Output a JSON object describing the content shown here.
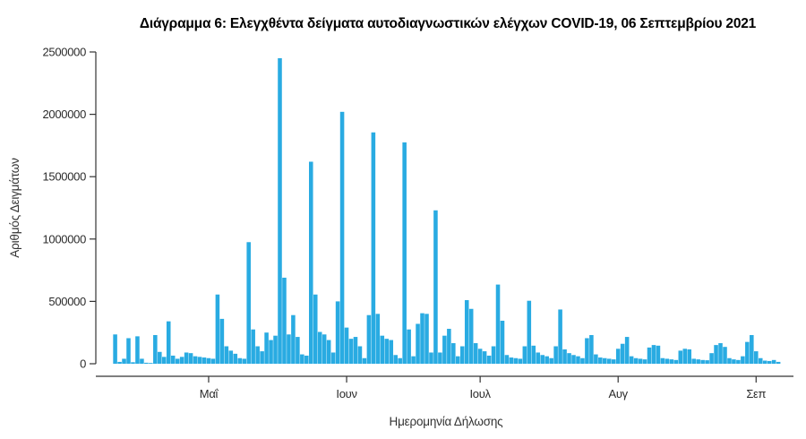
{
  "title": "Διάγραμμα 6: Ελεγχθέντα δείγματα αυτοδιαγνωστικών ελέγχων COVID-19, 06 Σεπτεμβρίου 2021",
  "chart_data": {
    "type": "bar",
    "title": "Διάγραμμα 6: Ελεγχθέντα δείγματα αυτοδιαγνωστικών ελέγχων COVID-19, 06 Σεπτεμβρίου 2021",
    "xlabel": "Ημερομηνία Δήλωσης",
    "ylabel": "Αριθμός Δειγμάτων",
    "grid": false,
    "legend": null,
    "bar_color": "#29ABE2",
    "axis_color": "#333333",
    "ylim": [
      0,
      2500000
    ],
    "yticks": [
      0,
      500000,
      1000000,
      1500000,
      2000000,
      2500000
    ],
    "x_unit": "day",
    "start_date": "2021-04-10",
    "end_date": "2021-09-06",
    "xticks": [
      {
        "label": "Μαΐ",
        "day_index": 21
      },
      {
        "label": "Ιουν",
        "day_index": 52
      },
      {
        "label": "Ιουλ",
        "day_index": 82
      },
      {
        "label": "Αυγ",
        "day_index": 113
      },
      {
        "label": "Σεπ",
        "day_index": 144
      }
    ],
    "values": [
      235000,
      15000,
      40000,
      205000,
      12000,
      220000,
      40000,
      8000,
      6000,
      230000,
      95000,
      55000,
      340000,
      65000,
      40000,
      55000,
      90000,
      85000,
      60000,
      55000,
      50000,
      45000,
      40000,
      555000,
      360000,
      140000,
      105000,
      80000,
      45000,
      40000,
      975000,
      275000,
      140000,
      100000,
      250000,
      190000,
      225000,
      2450000,
      690000,
      235000,
      390000,
      215000,
      75000,
      65000,
      1620000,
      555000,
      255000,
      235000,
      190000,
      90000,
      500000,
      2020000,
      290000,
      200000,
      215000,
      140000,
      45000,
      390000,
      1855000,
      400000,
      225000,
      200000,
      190000,
      70000,
      45000,
      1775000,
      275000,
      60000,
      320000,
      405000,
      400000,
      90000,
      1230000,
      90000,
      225000,
      280000,
      165000,
      60000,
      140000,
      510000,
      440000,
      165000,
      120000,
      100000,
      65000,
      140000,
      635000,
      345000,
      70000,
      50000,
      45000,
      40000,
      140000,
      505000,
      145000,
      90000,
      70000,
      60000,
      45000,
      140000,
      435000,
      115000,
      85000,
      70000,
      60000,
      45000,
      205000,
      230000,
      75000,
      50000,
      45000,
      40000,
      35000,
      120000,
      160000,
      215000,
      60000,
      45000,
      40000,
      35000,
      130000,
      150000,
      145000,
      45000,
      40000,
      35000,
      30000,
      105000,
      120000,
      115000,
      40000,
      35000,
      30000,
      28000,
      85000,
      150000,
      165000,
      135000,
      45000,
      35000,
      30000,
      60000,
      175000,
      230000,
      100000,
      45000,
      25000,
      22000,
      30000,
      15000
    ]
  }
}
